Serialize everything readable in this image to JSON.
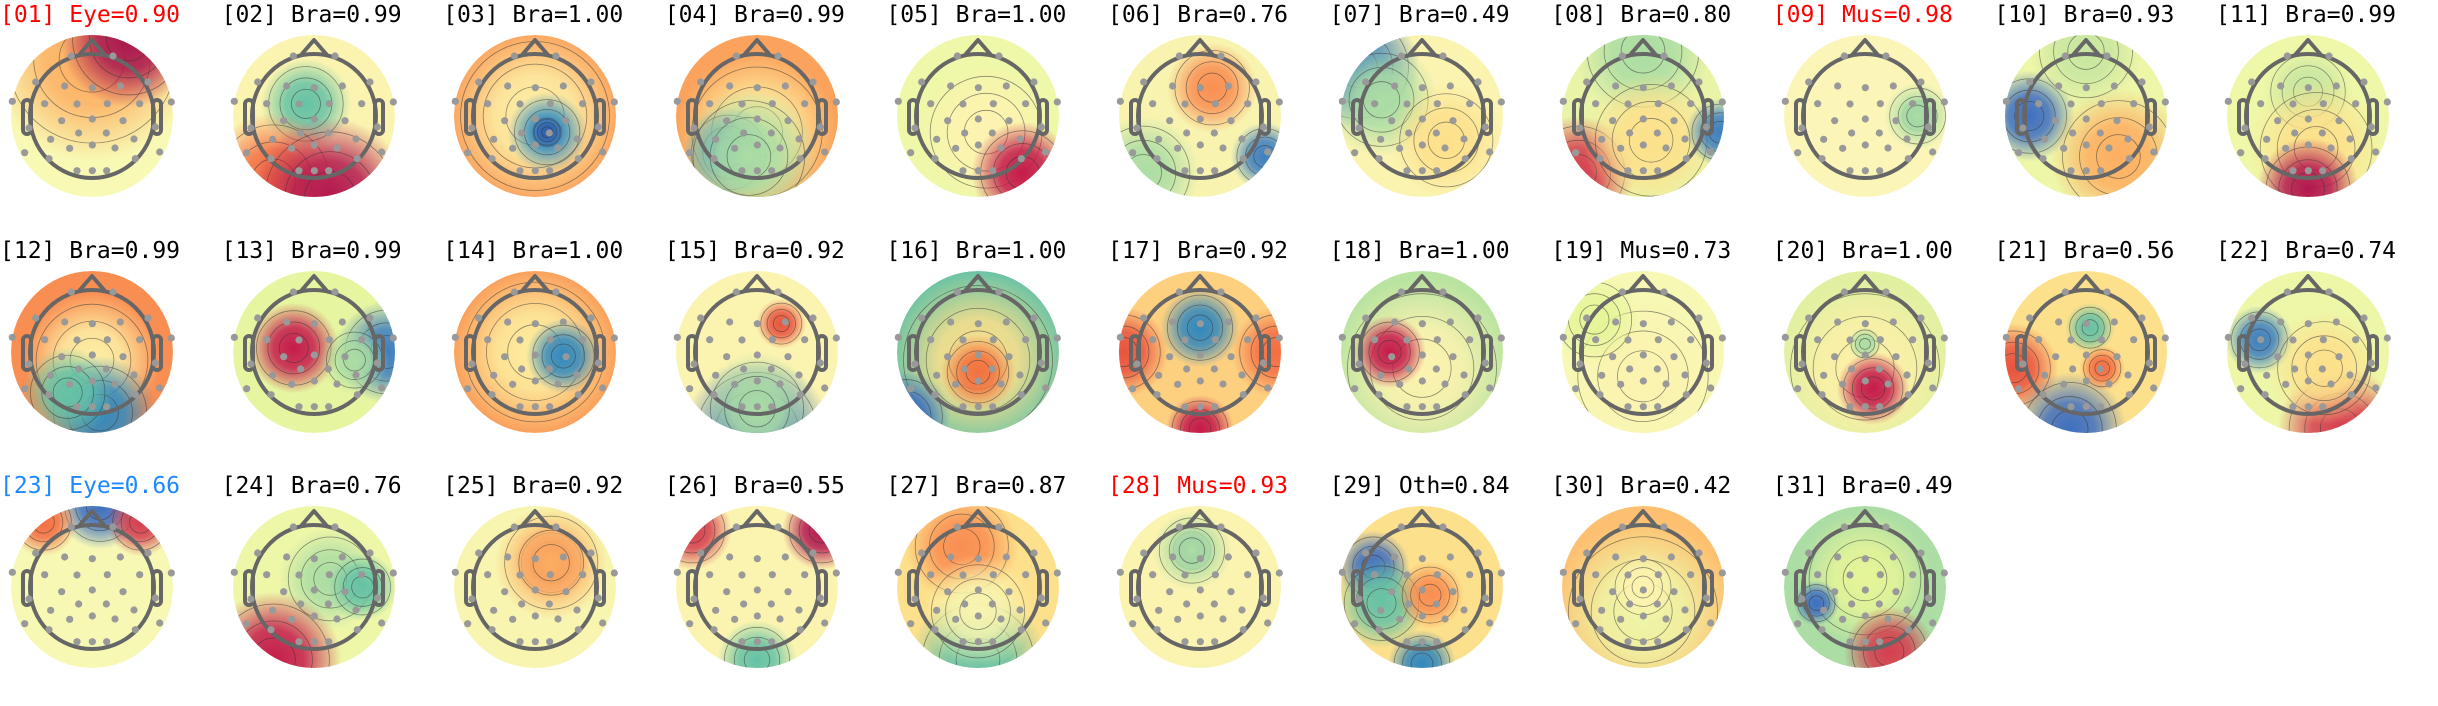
{
  "colors": {
    "eye_brain_default": "#000000",
    "artifact_red": "#ff0000",
    "artifact_blue": "#1e88ff",
    "head_outline": "#666666",
    "electrode": "#999999"
  },
  "colormap": [
    "#3288bd",
    "#66c2a5",
    "#abdda4",
    "#e6f598",
    "#ffffbf",
    "#fee08b",
    "#fdae61",
    "#f46d43",
    "#d53e4f",
    "#9e0142"
  ],
  "components": [
    {
      "text": "[01] Eye=0.90",
      "color": "#ff0000"
    },
    {
      "text": "[02] Bra=0.99",
      "color": "#000000"
    },
    {
      "text": "[03] Bra=1.00",
      "color": "#000000"
    },
    {
      "text": "[04] Bra=0.99",
      "color": "#000000"
    },
    {
      "text": "[05] Bra=1.00",
      "color": "#000000"
    },
    {
      "text": "[06] Bra=0.76",
      "color": "#000000"
    },
    {
      "text": "[07] Bra=0.49",
      "color": "#000000"
    },
    {
      "text": "[08] Bra=0.80",
      "color": "#000000"
    },
    {
      "text": "[09] Mus=0.98",
      "color": "#ff0000"
    },
    {
      "text": "[10] Bra=0.93",
      "color": "#000000"
    },
    {
      "text": "[11] Bra=0.99",
      "color": "#000000"
    },
    {
      "text": "[12] Bra=0.99",
      "color": "#000000"
    },
    {
      "text": "[13] Bra=0.99",
      "color": "#000000"
    },
    {
      "text": "[14] Bra=1.00",
      "color": "#000000"
    },
    {
      "text": "[15] Bra=0.92",
      "color": "#000000"
    },
    {
      "text": "[16] Bra=1.00",
      "color": "#000000"
    },
    {
      "text": "[17] Bra=0.92",
      "color": "#000000"
    },
    {
      "text": "[18] Bra=1.00",
      "color": "#000000"
    },
    {
      "text": "[19] Mus=0.73",
      "color": "#000000"
    },
    {
      "text": "[20] Bra=1.00",
      "color": "#000000"
    },
    {
      "text": "[21] Bra=0.56",
      "color": "#000000"
    },
    {
      "text": "[22] Bra=0.74",
      "color": "#000000"
    },
    {
      "text": "[23] Eye=0.66",
      "color": "#1e88ff"
    },
    {
      "text": "[24] Bra=0.76",
      "color": "#000000"
    },
    {
      "text": "[25] Bra=0.92",
      "color": "#000000"
    },
    {
      "text": "[26] Bra=0.55",
      "color": "#000000"
    },
    {
      "text": "[27] Bra=0.87",
      "color": "#000000"
    },
    {
      "text": "[28] Mus=0.93",
      "color": "#ff0000"
    },
    {
      "text": "[29] Oth=0.84",
      "color": "#000000"
    },
    {
      "text": "[30] Bra=0.42",
      "color": "#000000"
    },
    {
      "text": "[31] Bra=0.49",
      "color": "#000000"
    }
  ]
}
